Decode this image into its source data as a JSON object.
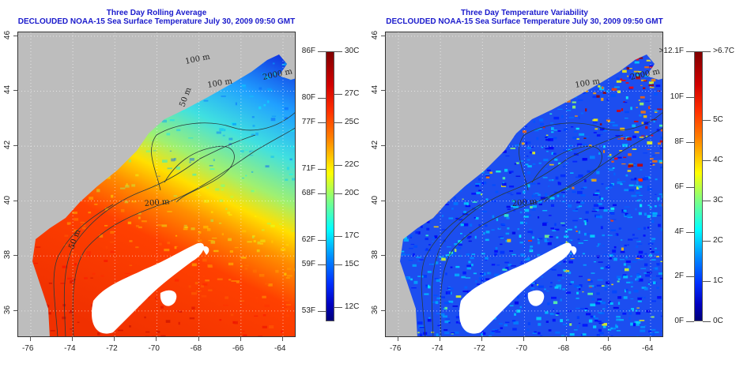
{
  "left": {
    "title1": "Three Day Rolling Average",
    "title2": "DECLOUDED NOAA-15 Sea Surface Temperature July 30, 2009 09:50 GMT",
    "contours": [
      "100 m",
      "2000 m",
      "100 m",
      "50 m",
      "200 m",
      "50 m"
    ],
    "colorbar": {
      "min": 11,
      "max": 30,
      "units": "C",
      "left_labels": [
        {
          "v": 30,
          "t": "86F"
        },
        {
          "v": 26.7,
          "t": "80F"
        },
        {
          "v": 25,
          "t": "77F"
        },
        {
          "v": 21.7,
          "t": "71F"
        },
        {
          "v": 20,
          "t": "68F"
        },
        {
          "v": 16.7,
          "t": "62F"
        },
        {
          "v": 15,
          "t": "59F"
        },
        {
          "v": 11.7,
          "t": "53F"
        }
      ],
      "right_labels": [
        {
          "v": 30,
          "t": "30C"
        },
        {
          "v": 27,
          "t": "27C"
        },
        {
          "v": 25,
          "t": "25C"
        },
        {
          "v": 22,
          "t": "22C"
        },
        {
          "v": 20,
          "t": "20C"
        },
        {
          "v": 17,
          "t": "17C"
        },
        {
          "v": 15,
          "t": "15C"
        },
        {
          "v": 12,
          "t": "12C"
        }
      ]
    }
  },
  "right": {
    "title1": "Three Day Temperature Variability",
    "title2": "DECLOUDED NOAA-15 Sea Surface Temperature July 30, 2009 09:50 GMT",
    "contours": [
      "2000 m",
      "100 m",
      "200 m"
    ],
    "colorbar": {
      "min": 0,
      "max": 6.7,
      "units": "C",
      "left_labels": [
        {
          "v": 6.7,
          "t": ">12.1F"
        },
        {
          "v": 5.56,
          "t": "10F"
        },
        {
          "v": 4.44,
          "t": "8F"
        },
        {
          "v": 3.33,
          "t": "6F"
        },
        {
          "v": 2.22,
          "t": "4F"
        },
        {
          "v": 1.11,
          "t": "2F"
        },
        {
          "v": 0,
          "t": "0F"
        }
      ],
      "right_labels": [
        {
          "v": 6.7,
          "t": ">6.7C"
        },
        {
          "v": 5,
          "t": "5C"
        },
        {
          "v": 4,
          "t": "4C"
        },
        {
          "v": 3,
          "t": "3C"
        },
        {
          "v": 2,
          "t": "2C"
        },
        {
          "v": 1,
          "t": "1C"
        },
        {
          "v": 0,
          "t": "0C"
        }
      ]
    }
  },
  "axes": {
    "lon_ticks": [
      "-76",
      "-74",
      "-72",
      "-70",
      "-68",
      "-66",
      "-64"
    ],
    "lon_values": [
      -76,
      -74,
      -72,
      -70,
      -68,
      -66,
      -64
    ],
    "lat_ticks": [
      "46",
      "44",
      "42",
      "40",
      "38",
      "36"
    ],
    "lat_values": [
      46,
      44,
      42,
      40,
      38,
      36
    ],
    "lon_range": [
      -76.6,
      -63.36
    ],
    "lat_range": [
      35.02,
      46.14
    ]
  },
  "colors": {
    "title": "#1a1acc",
    "land": "#bdbdbd",
    "cloud": "#ffffff"
  }
}
